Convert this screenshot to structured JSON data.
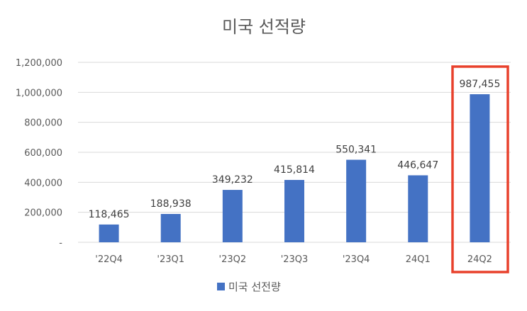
{
  "chart_data": {
    "type": "bar",
    "title": "미국 선적량",
    "categories": [
      "'22Q4",
      "'23Q1",
      "'23Q2",
      "'23Q3",
      "'23Q4",
      "24Q1",
      "24Q2"
    ],
    "series": [
      {
        "name": "미국 선전량",
        "values": [
          118465,
          188938,
          349232,
          415814,
          550341,
          446647,
          987455
        ],
        "value_labels": [
          "118,465",
          "188,938",
          "349,232",
          "415,814",
          "550,341",
          "446,647",
          "987,455"
        ],
        "color": "#4472c4"
      }
    ],
    "y_ticks": [
      0,
      200000,
      400000,
      600000,
      800000,
      1000000,
      1200000
    ],
    "y_tick_labels": [
      "-",
      "200,000",
      "400,000",
      "600,000",
      "800,000",
      "1,000,000",
      "1,200,000"
    ],
    "ylim": [
      0,
      1200000
    ],
    "grid": true,
    "legend_position": "bottom",
    "highlight": {
      "category": "24Q2",
      "color": "#e8412c"
    },
    "colors": {
      "bar": "#4472c4",
      "grid": "#d9d9d9",
      "text": "#595959",
      "highlight": "#e8412c"
    }
  }
}
